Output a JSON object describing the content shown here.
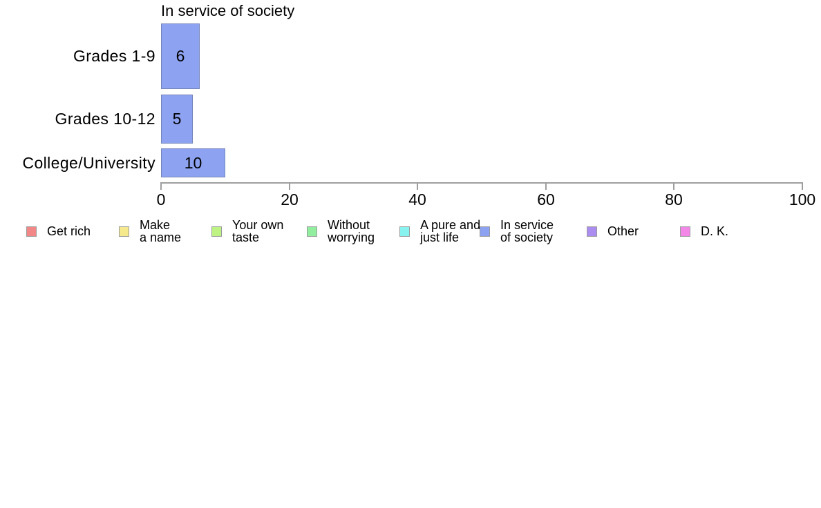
{
  "chart_data": {
    "type": "bar",
    "orientation": "horizontal",
    "title": "In service of society",
    "categories": [
      "Grades 1-9",
      "Grades 10-12",
      "College/University"
    ],
    "values": [
      6,
      5,
      10
    ],
    "xlim": [
      0,
      100
    ],
    "x_ticks": [
      0,
      20,
      40,
      60,
      80,
      100
    ],
    "grid": false,
    "bar_color": "#8DA3F2",
    "bar_border_color": "#7384B8",
    "axis_color": "#9E9E9E",
    "legend": {
      "position": "bottom",
      "items": [
        {
          "label": "Get rich",
          "color": "#F28787"
        },
        {
          "label": "Make\na name",
          "color": "#F5E98E"
        },
        {
          "label": "Your own\ntaste",
          "color": "#BEF283"
        },
        {
          "label": "Without\nworrying",
          "color": "#90EE9E"
        },
        {
          "label": "A pure and\njust life",
          "color": "#87F2EE"
        },
        {
          "label": "In service\nof society",
          "color": "#8DA3F2"
        },
        {
          "label": "Other",
          "color": "#AB8DF0"
        },
        {
          "label": "D. K.",
          "color": "#F287E8"
        }
      ]
    }
  }
}
